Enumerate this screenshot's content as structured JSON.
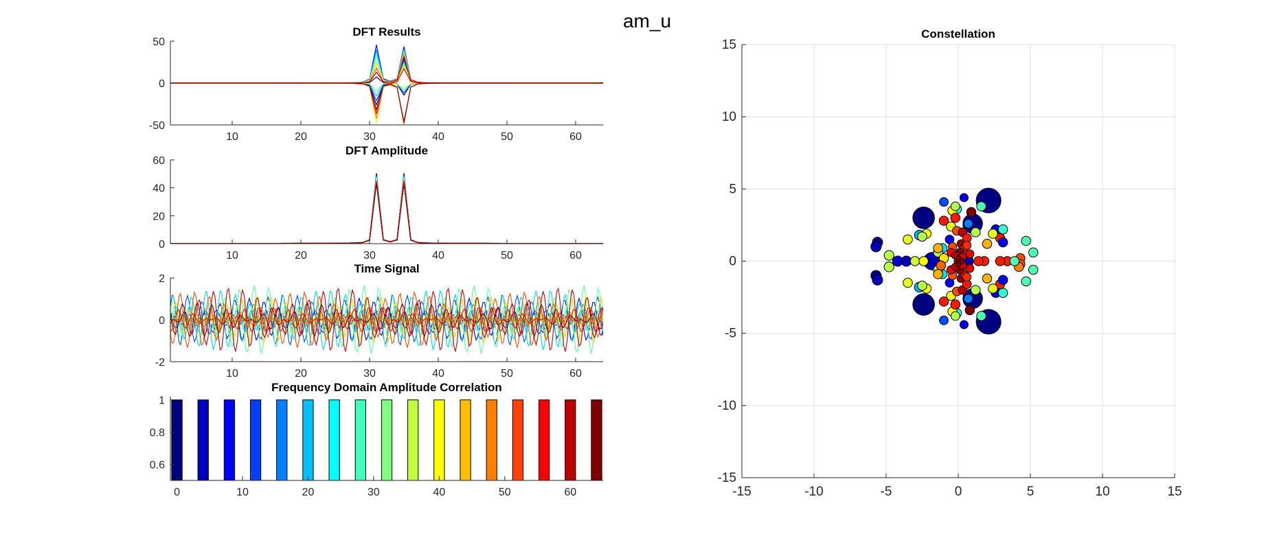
{
  "figure": {
    "suptitle": "am_u"
  },
  "chart_data": [
    {
      "type": "line",
      "id": "dft-results",
      "title": "DFT Results",
      "xlim": [
        1,
        64
      ],
      "ylim": [
        -50,
        50
      ],
      "xticks": [
        10,
        20,
        30,
        40,
        50,
        60
      ],
      "yticks": [
        -50,
        0,
        50
      ],
      "series_count": 16,
      "peaks": [
        31,
        35
      ],
      "peak_values": [
        48,
        49
      ],
      "trough_values": [
        -48,
        -45
      ]
    },
    {
      "type": "line",
      "id": "dft-amplitude",
      "title": "DFT Amplitude",
      "xlim": [
        1,
        64
      ],
      "ylim": [
        0,
        60
      ],
      "xticks": [
        10,
        20,
        30,
        40,
        50,
        60
      ],
      "yticks": [
        0,
        20,
        40,
        60
      ],
      "series_count": 16,
      "peaks": [
        31,
        35
      ],
      "peak_values": [
        50,
        50
      ]
    },
    {
      "type": "line",
      "id": "time-signal",
      "title": "Time Signal",
      "xlim": [
        1,
        64
      ],
      "ylim": [
        -2,
        2
      ],
      "xticks": [
        10,
        20,
        30,
        40,
        50,
        60
      ],
      "yticks": [
        -2,
        0,
        2
      ],
      "series_count": 16,
      "amplitude_range": [
        -1.7,
        1.7
      ]
    },
    {
      "type": "bar",
      "id": "freq-corr",
      "title": "Frequency Domain Amplitude Correlation",
      "x": [
        0,
        4,
        8,
        12,
        16,
        20,
        24,
        28,
        32,
        36,
        40,
        44,
        48,
        52,
        56,
        60,
        64
      ],
      "values": [
        1,
        1,
        1,
        1,
        1,
        1,
        1,
        1,
        1,
        1,
        1,
        1,
        1,
        1,
        1,
        1,
        1
      ],
      "xlim": [
        -1,
        65
      ],
      "ylim": [
        0.5,
        1.02
      ],
      "xticks": [
        0,
        10,
        20,
        30,
        40,
        50,
        60
      ],
      "yticks": [
        0.6,
        0.8,
        1
      ]
    },
    {
      "type": "scatter",
      "id": "constellation",
      "title": "Constellation",
      "xlim": [
        -15,
        15
      ],
      "ylim": [
        -15,
        15
      ],
      "xticks": [
        -15,
        -10,
        -5,
        0,
        5,
        10,
        15
      ],
      "yticks": [
        -15,
        -10,
        -5,
        0,
        5,
        10,
        15
      ],
      "grid": true,
      "points": [
        [
          2.1,
          4.2,
          2.4,
          0.0
        ],
        [
          -2.4,
          3.0,
          2.1,
          0.0
        ],
        [
          -2.4,
          -3.0,
          2.1,
          0.0
        ],
        [
          2.1,
          -4.2,
          2.4,
          0.0
        ],
        [
          1.0,
          2.6,
          1.9,
          0.0
        ],
        [
          1.0,
          -2.6,
          1.9,
          0.0
        ],
        [
          -1.8,
          0.0,
          1.7,
          0.05
        ],
        [
          0.5,
          0.0,
          1.5,
          0.05
        ],
        [
          -5.6,
          1.3,
          1.0,
          0.0
        ],
        [
          -5.7,
          1.0,
          1.0,
          0.05
        ],
        [
          -5.7,
          -1.0,
          1.0,
          0.0
        ],
        [
          -5.6,
          -1.3,
          1.0,
          0.05
        ],
        [
          -4.2,
          0.0,
          1.0,
          0.08
        ],
        [
          -3.6,
          0.0,
          1.0,
          0.05
        ],
        [
          -4.8,
          0.4,
          0.95,
          0.55
        ],
        [
          -4.8,
          -0.4,
          0.95,
          0.55
        ],
        [
          -3.0,
          0.0,
          0.9,
          0.58
        ],
        [
          -2.4,
          0.0,
          0.9,
          0.62
        ],
        [
          -2.7,
          1.8,
          0.95,
          0.3
        ],
        [
          -2.7,
          -1.8,
          0.95,
          0.3
        ],
        [
          -2.2,
          1.9,
          0.9,
          0.62
        ],
        [
          -2.2,
          -1.9,
          0.9,
          0.62
        ],
        [
          -2.5,
          1.7,
          0.9,
          0.55
        ],
        [
          -2.5,
          -1.7,
          0.9,
          0.55
        ],
        [
          -3.5,
          1.5,
          0.9,
          0.6
        ],
        [
          -3.5,
          -1.5,
          0.9,
          0.6
        ],
        [
          -1.0,
          4.1,
          0.85,
          0.2
        ],
        [
          -1.0,
          -4.1,
          0.85,
          0.2
        ],
        [
          0.4,
          4.4,
          0.8,
          0.1
        ],
        [
          0.4,
          -4.4,
          0.8,
          0.1
        ],
        [
          -0.1,
          3.6,
          0.9,
          0.4
        ],
        [
          -0.1,
          -3.6,
          0.9,
          0.4
        ],
        [
          -0.2,
          3.8,
          0.85,
          0.55
        ],
        [
          -0.2,
          -3.8,
          0.85,
          0.55
        ],
        [
          -0.4,
          3.5,
          0.9,
          0.63
        ],
        [
          -0.4,
          -3.5,
          0.9,
          0.63
        ],
        [
          1.6,
          3.8,
          0.9,
          0.45
        ],
        [
          1.6,
          -3.8,
          0.9,
          0.45
        ],
        [
          0.9,
          3.4,
          0.9,
          1.0
        ],
        [
          0.8,
          -3.4,
          0.9,
          1.0
        ],
        [
          -0.2,
          3.0,
          0.9,
          0.85
        ],
        [
          -0.2,
          -3.0,
          0.9,
          0.85
        ],
        [
          2.6,
          2.2,
          0.9,
          0.1
        ],
        [
          2.6,
          -2.2,
          0.9,
          0.1
        ],
        [
          3.1,
          2.2,
          0.9,
          0.42
        ],
        [
          3.1,
          -2.2,
          0.9,
          0.42
        ],
        [
          2.9,
          1.6,
          0.9,
          0.85
        ],
        [
          2.9,
          -1.6,
          0.9,
          0.85
        ],
        [
          3.1,
          1.3,
          0.9,
          0.1
        ],
        [
          3.1,
          -1.3,
          0.9,
          0.1
        ],
        [
          4.7,
          1.4,
          0.9,
          0.45
        ],
        [
          4.7,
          -1.4,
          0.9,
          0.45
        ],
        [
          5.2,
          0.6,
          0.9,
          0.45
        ],
        [
          5.2,
          -0.6,
          0.9,
          0.45
        ],
        [
          3.4,
          0.0,
          0.9,
          0.85
        ],
        [
          2.9,
          0.0,
          0.9,
          0.85
        ],
        [
          4.3,
          0.2,
          0.9,
          0.8
        ],
        [
          4.3,
          -0.2,
          0.9,
          0.8
        ],
        [
          4.2,
          -0.4,
          0.9,
          0.75
        ],
        [
          3.9,
          0.0,
          0.9,
          0.45
        ],
        [
          2.4,
          1.9,
          0.9,
          0.6
        ],
        [
          2.4,
          -1.9,
          0.9,
          0.6
        ],
        [
          2.0,
          1.2,
          0.9,
          0.7
        ],
        [
          2.0,
          -1.2,
          0.9,
          0.7
        ],
        [
          1.8,
          0.0,
          0.9,
          0.85
        ],
        [
          1.4,
          0.0,
          0.9,
          0.85
        ],
        [
          1.2,
          2.0,
          0.9,
          0.55
        ],
        [
          1.2,
          -2.0,
          0.9,
          0.55
        ],
        [
          -1.0,
          2.8,
          0.9,
          0.85
        ],
        [
          -1.0,
          -2.8,
          0.9,
          0.85
        ],
        [
          -0.5,
          2.4,
          0.9,
          0.6
        ],
        [
          -0.5,
          -2.4,
          0.9,
          0.6
        ],
        [
          -1.1,
          0.9,
          0.9,
          0.35
        ],
        [
          -1.1,
          -0.9,
          0.9,
          0.35
        ],
        [
          -1.4,
          0.6,
          0.9,
          0.55
        ],
        [
          -1.4,
          -0.6,
          0.9,
          0.55
        ],
        [
          -1.0,
          0.2,
          0.9,
          0.65
        ],
        [
          -1.2,
          -0.3,
          0.9,
          0.78
        ],
        [
          -1.4,
          0.9,
          0.9,
          0.7
        ],
        [
          -1.4,
          -0.9,
          0.9,
          0.7
        ],
        [
          -0.6,
          1.5,
          0.85,
          0.1
        ],
        [
          -0.6,
          -1.5,
          0.85,
          0.1
        ],
        [
          0.7,
          2.6,
          0.85,
          0.25
        ],
        [
          0.7,
          -2.6,
          0.85,
          0.25
        ],
        [
          -0.1,
          2.1,
          0.85,
          0.8
        ],
        [
          -0.1,
          -2.1,
          0.85,
          0.8
        ],
        [
          0.3,
          2.0,
          0.85,
          0.95
        ],
        [
          0.3,
          -2.0,
          0.85,
          0.95
        ],
        [
          0.6,
          1.6,
          0.85,
          0.85
        ],
        [
          0.6,
          -1.6,
          0.85,
          0.85
        ],
        [
          0.2,
          1.2,
          0.8,
          0.98
        ],
        [
          0.2,
          -1.2,
          0.8,
          0.98
        ],
        [
          0.4,
          0.9,
          0.8,
          0.9
        ],
        [
          0.4,
          -0.9,
          0.8,
          0.9
        ],
        [
          0.1,
          0.6,
          0.8,
          1.0
        ],
        [
          0.1,
          -0.6,
          0.8,
          1.0
        ],
        [
          -0.4,
          1.0,
          0.8,
          0.8
        ],
        [
          -0.4,
          -1.0,
          0.8,
          0.8
        ],
        [
          0.0,
          0.0,
          0.8,
          1.0
        ],
        [
          0.8,
          0.5,
          0.8,
          0.9
        ],
        [
          0.8,
          -0.5,
          0.8,
          0.9
        ],
        [
          -0.2,
          0.4,
          0.75,
          0.95
        ],
        [
          -0.2,
          -0.4,
          0.75,
          0.95
        ],
        [
          0.3,
          0.3,
          0.75,
          0.92
        ],
        [
          0.3,
          -0.3,
          0.75,
          0.92
        ],
        [
          0.6,
          1.1,
          0.8,
          0.83
        ],
        [
          0.6,
          -1.1,
          0.8,
          0.83
        ],
        [
          -0.5,
          0.6,
          0.8,
          0.88
        ],
        [
          -0.5,
          -0.6,
          0.8,
          0.88
        ],
        [
          0.2,
          0.0,
          0.6,
          1.0
        ],
        [
          0.0,
          0.2,
          0.5,
          1.0
        ],
        [
          0.0,
          -0.2,
          0.5,
          1.0
        ]
      ]
    }
  ]
}
